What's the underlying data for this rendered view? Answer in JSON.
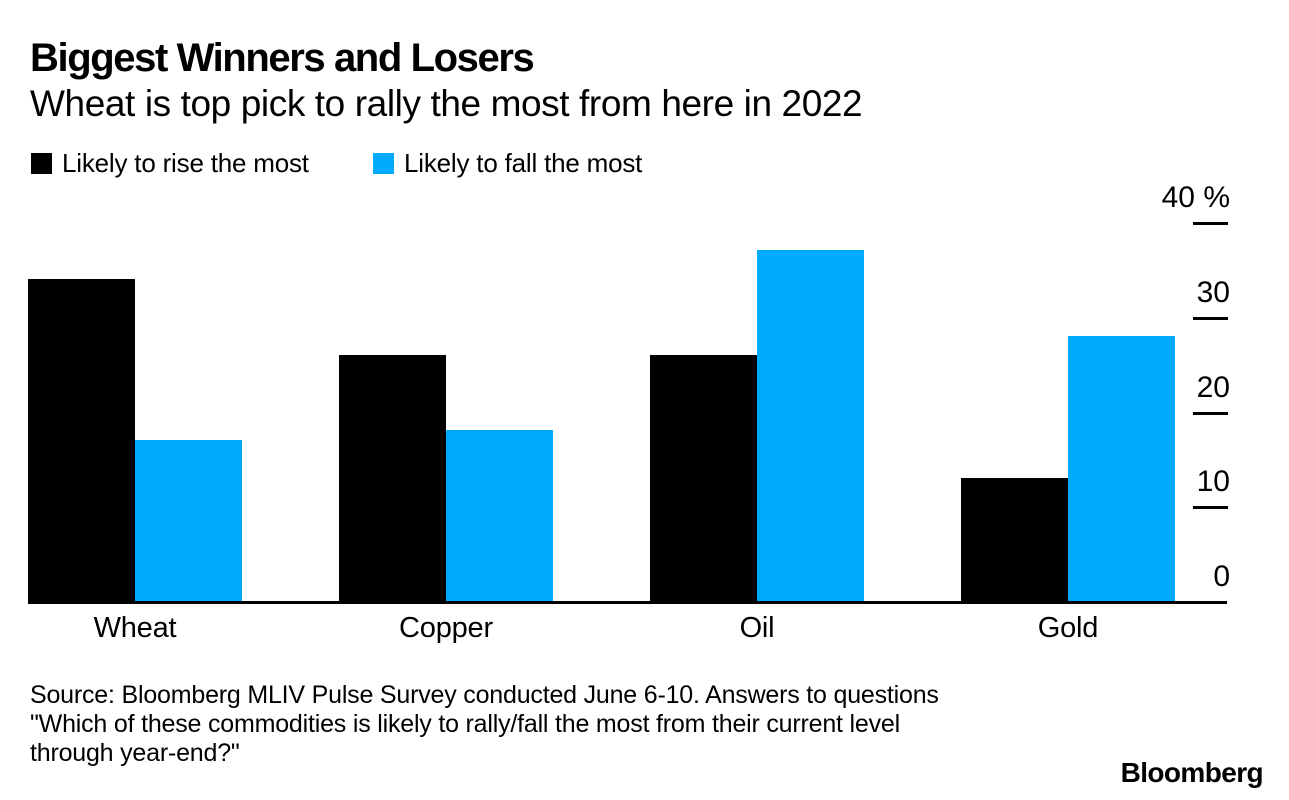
{
  "header": {
    "title": "Biggest Winners and Losers",
    "subtitle": "Wheat is top pick to rally the most from here in 2022"
  },
  "legend": {
    "items": [
      {
        "label": "Likely to rise the most",
        "color": "#000000"
      },
      {
        "label": "Likely to fall the most",
        "color": "#00AAFE"
      }
    ]
  },
  "chart_data": {
    "type": "bar",
    "categories": [
      "Wheat",
      "Copper",
      "Oil",
      "Gold"
    ],
    "series": [
      {
        "name": "Likely to rise the most",
        "color": "#000000",
        "values": [
          34,
          26,
          26,
          13
        ]
      },
      {
        "name": "Likely to fall the most",
        "color": "#00AAFE",
        "values": [
          17,
          18,
          37,
          28
        ]
      }
    ],
    "title": "Biggest Winners and Losers",
    "subtitle": "Wheat is top pick to rally the most from here in 2022",
    "xlabel": "",
    "ylabel": "",
    "y_unit": "%",
    "ylim": [
      0,
      40
    ],
    "y_ticks": [
      40,
      30,
      20,
      10,
      0
    ],
    "y_tick_labels": [
      "40 %",
      "30",
      "20",
      "10",
      "0"
    ],
    "y_axis_side": "right",
    "grid": false,
    "legend_position": "top-left"
  },
  "footer": {
    "source_lines": [
      "Source: Bloomberg MLIV Pulse Survey conducted June 6-10. Answers to questions",
      "\"Which of these commodities is likely to rally/fall the most from their current level",
      "through year-end?\""
    ],
    "logo": "Bloomberg"
  }
}
